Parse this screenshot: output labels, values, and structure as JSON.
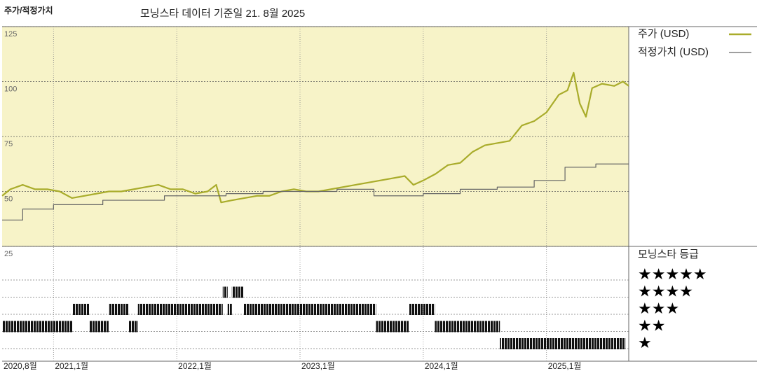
{
  "chart_data": {
    "type": "line",
    "title": "주가/적정가치",
    "subtitle": "모닝스타 데이터 기준일 21. 8월 2025",
    "xlim": [
      2020.583,
      2025.667
    ],
    "xticks": [
      {
        "value": 2020.583,
        "label": "2020,8월"
      },
      {
        "value": 2021,
        "label": "2021,1월"
      },
      {
        "value": 2022,
        "label": "2022,1월"
      },
      {
        "value": 2023,
        "label": "2023,1월"
      },
      {
        "value": 2024,
        "label": "2024,1월"
      },
      {
        "value": 2025,
        "label": "2025,1월"
      }
    ],
    "ylim": [
      25,
      125
    ],
    "yticks": [
      25,
      50,
      75,
      100,
      125
    ],
    "grid": true,
    "series": [
      {
        "name": "주가 (USD)",
        "color": "#a9ac2b",
        "x": [
          2020.583,
          2020.65,
          2020.75,
          2020.85,
          2020.95,
          2021.05,
          2021.15,
          2021.25,
          2021.35,
          2021.45,
          2021.55,
          2021.65,
          2021.75,
          2021.85,
          2021.95,
          2022.05,
          2022.15,
          2022.25,
          2022.32,
          2022.36,
          2022.45,
          2022.55,
          2022.65,
          2022.75,
          2022.85,
          2022.95,
          2023.05,
          2023.15,
          2023.25,
          2023.35,
          2023.45,
          2023.55,
          2023.65,
          2023.75,
          2023.85,
          2023.92,
          2024.0,
          2024.1,
          2024.2,
          2024.3,
          2024.4,
          2024.5,
          2024.6,
          2024.7,
          2024.8,
          2024.9,
          2025.0,
          2025.1,
          2025.17,
          2025.22,
          2025.27,
          2025.32,
          2025.37,
          2025.45,
          2025.55,
          2025.62,
          2025.667
        ],
        "values": [
          48,
          51,
          53,
          51,
          51,
          50,
          47,
          48,
          49,
          50,
          50,
          51,
          52,
          53,
          51,
          51,
          49,
          50,
          53,
          45,
          46,
          47,
          48,
          48,
          50,
          51,
          50,
          50,
          51,
          52,
          53,
          54,
          55,
          56,
          57,
          53,
          55,
          58,
          62,
          63,
          68,
          71,
          72,
          73,
          80,
          82,
          86,
          94,
          96,
          104,
          90,
          84,
          97,
          99,
          98,
          100,
          98
        ]
      },
      {
        "name": "적정가치 (USD)",
        "color": "#666666",
        "step": true,
        "x": [
          2020.583,
          2020.75,
          2021.0,
          2021.4,
          2021.9,
          2022.4,
          2022.7,
          2023.3,
          2023.6,
          2024.0,
          2024.3,
          2024.6,
          2024.9,
          2025.15,
          2025.4,
          2025.667
        ],
        "values": [
          37,
          42,
          44,
          46,
          48,
          49,
          50,
          51,
          48,
          49,
          51,
          52,
          55,
          61,
          62.5,
          62.5
        ]
      }
    ],
    "rating_title": "모닝스타 등급",
    "rating_legend": [
      "★★★★★",
      "★★★★",
      "★★★",
      "★★",
      "★"
    ],
    "ratings": [
      {
        "start": 2020.583,
        "end": 2021.157,
        "stars": 2
      },
      {
        "start": 2021.157,
        "end": 2021.293,
        "stars": 3
      },
      {
        "start": 2021.293,
        "end": 2021.447,
        "stars": 2
      },
      {
        "start": 2021.447,
        "end": 2021.611,
        "stars": 3
      },
      {
        "start": 2021.611,
        "end": 2021.685,
        "stars": 2
      },
      {
        "start": 2021.685,
        "end": 2022.373,
        "stars": 3
      },
      {
        "start": 2022.373,
        "end": 2022.413,
        "stars": 4
      },
      {
        "start": 2022.413,
        "end": 2022.447,
        "stars": 3
      },
      {
        "start": 2022.447,
        "end": 2022.543,
        "stars": 4
      },
      {
        "start": 2022.543,
        "end": 2023.617,
        "stars": 3
      },
      {
        "start": 2023.617,
        "end": 2023.884,
        "stars": 2
      },
      {
        "start": 2023.884,
        "end": 2024.094,
        "stars": 3
      },
      {
        "start": 2024.094,
        "end": 2024.622,
        "stars": 2
      },
      {
        "start": 2024.622,
        "end": 2025.64,
        "stars": 1
      }
    ]
  }
}
